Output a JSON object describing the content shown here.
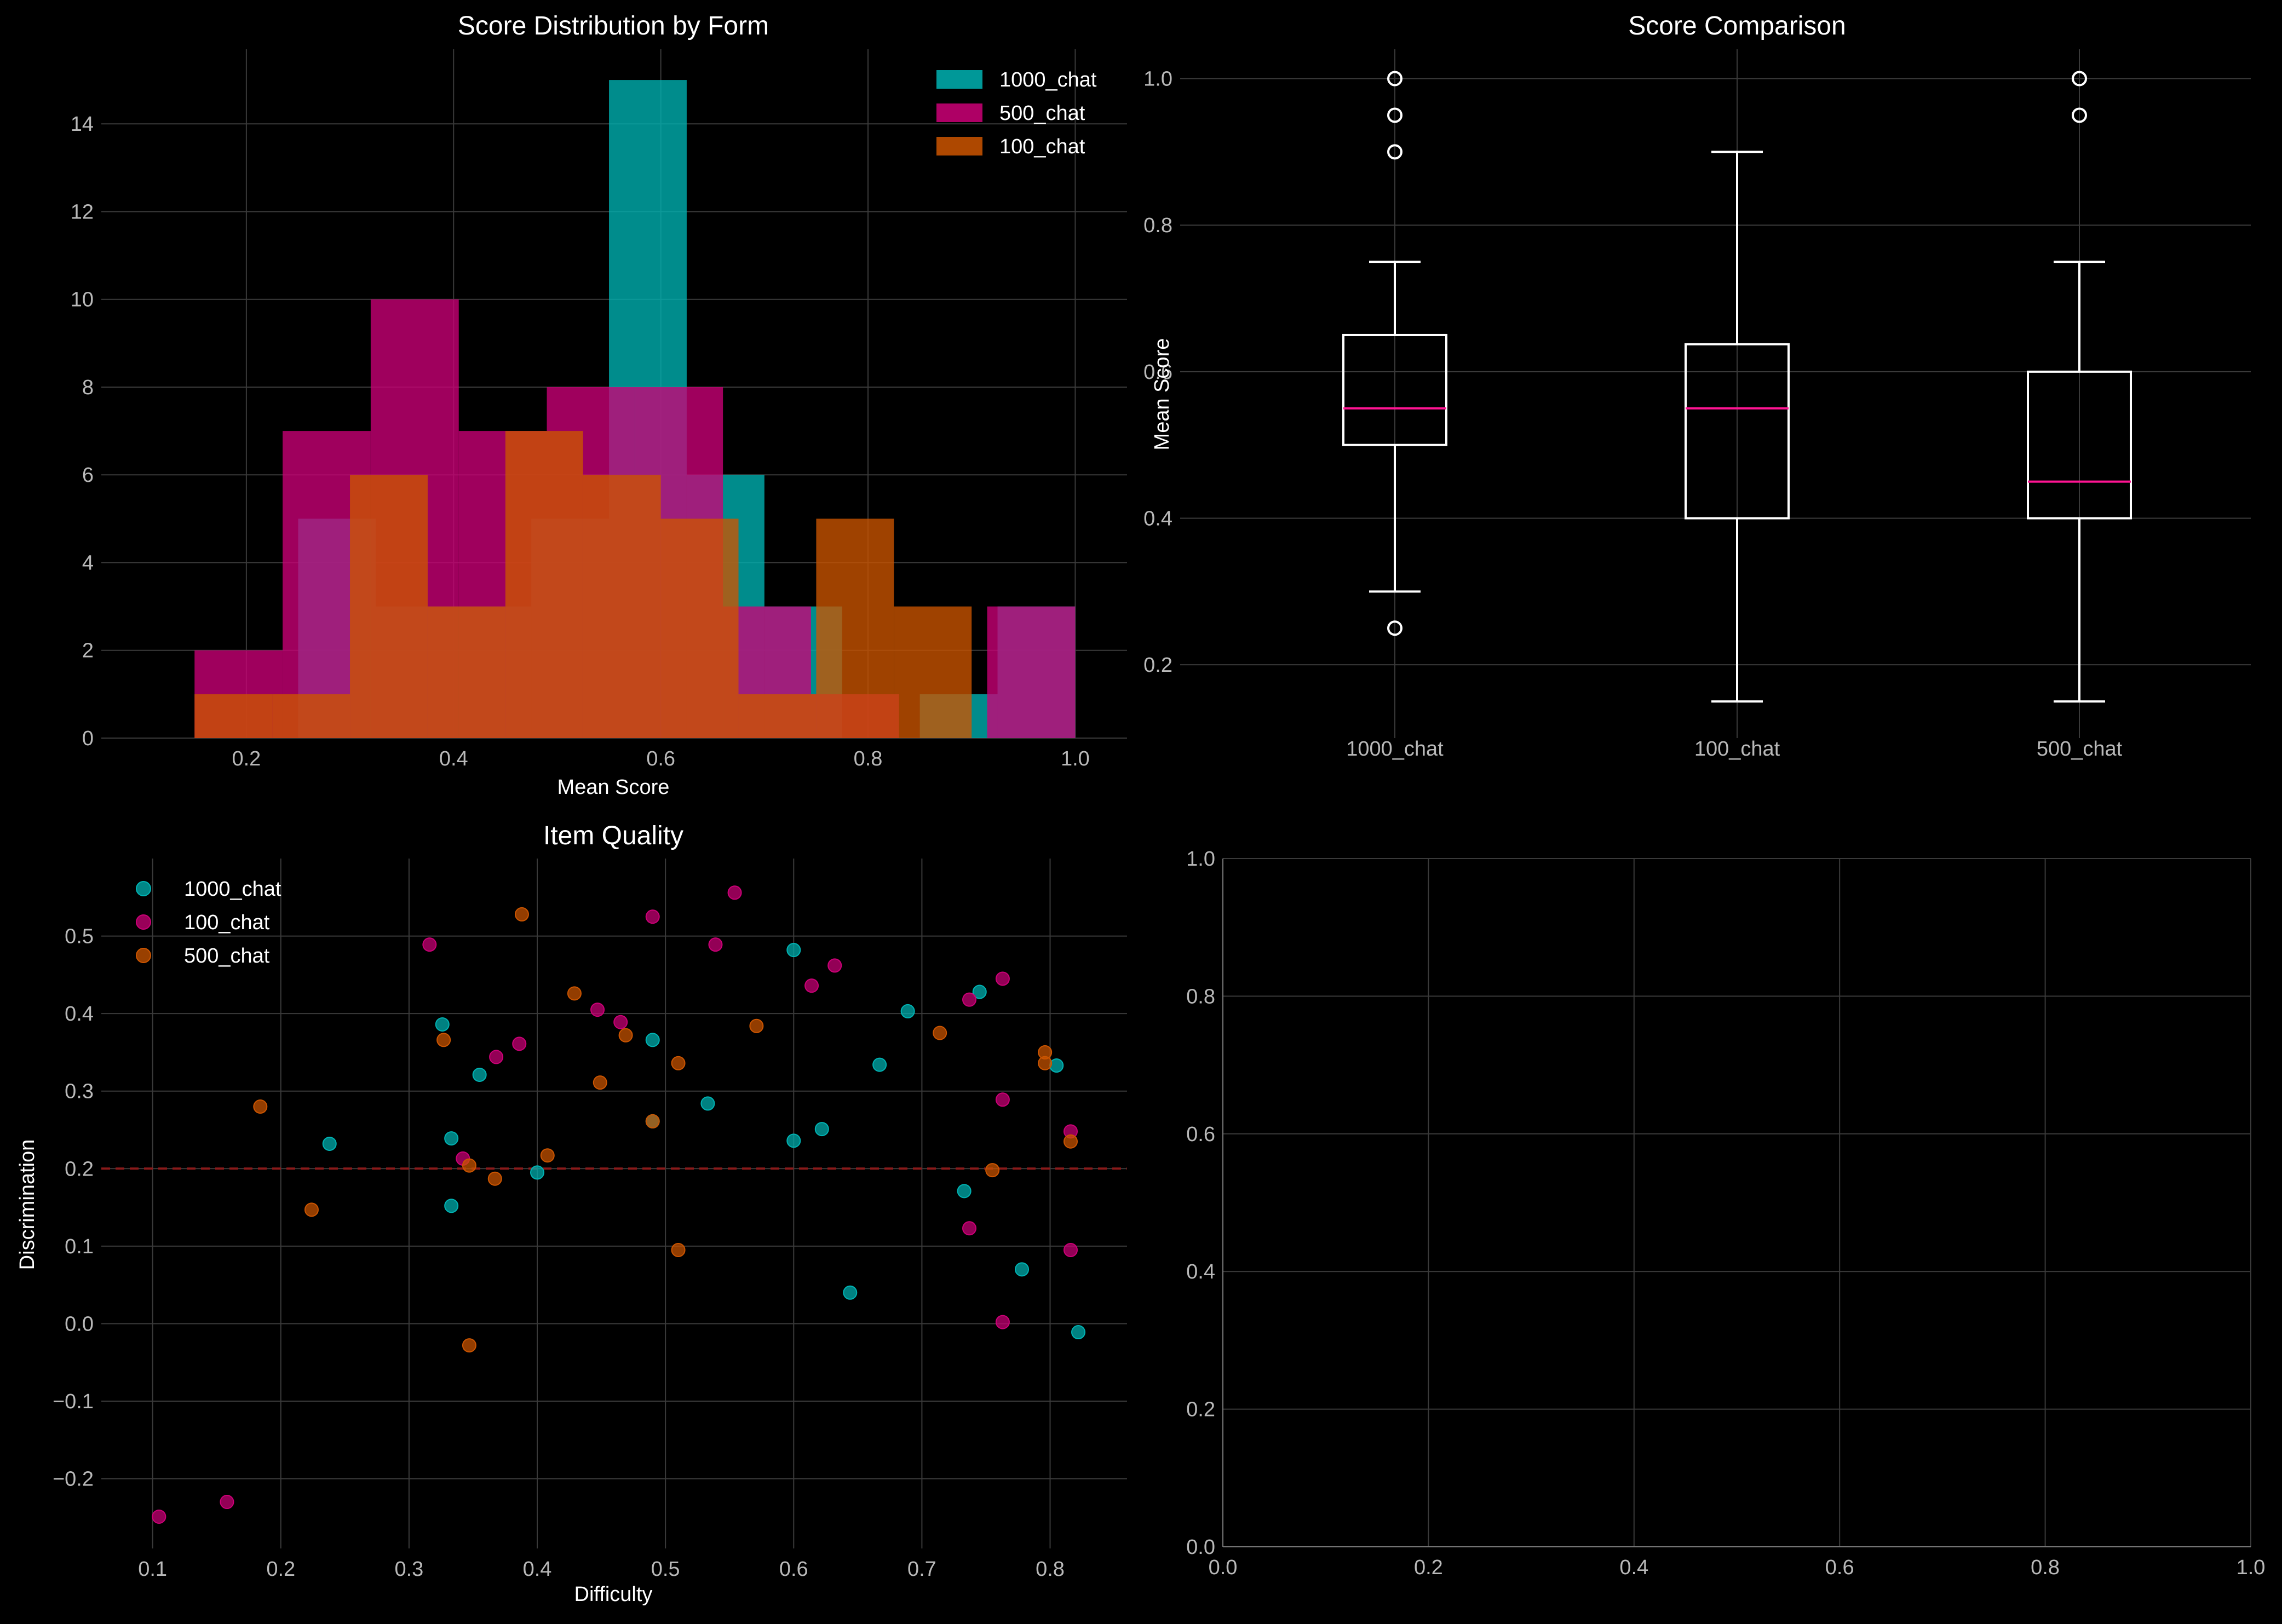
{
  "chart_data": [
    {
      "type": "histogram",
      "title": "Score Distribution by Form",
      "xlabel": "Mean Score",
      "ylabel": "",
      "xlim": [
        0.06,
        1.05
      ],
      "ylim": [
        0,
        15.7
      ],
      "xticks": [
        "0.2",
        "0.4",
        "0.6",
        "0.8",
        "1.0"
      ],
      "yticks": [
        "0",
        "2",
        "4",
        "6",
        "8",
        "10",
        "12",
        "14"
      ],
      "grid": true,
      "legend_position": "top-right",
      "series": [
        {
          "name": "1000_chat",
          "color": "#00b3b3",
          "bins": [
            {
              "x0": 0.25,
              "x1": 0.325,
              "count": 5
            },
            {
              "x0": 0.325,
              "x1": 0.4,
              "count": 3
            },
            {
              "x0": 0.4,
              "x1": 0.475,
              "count": 3
            },
            {
              "x0": 0.475,
              "x1": 0.55,
              "count": 5
            },
            {
              "x0": 0.55,
              "x1": 0.625,
              "count": 15
            },
            {
              "x0": 0.625,
              "x1": 0.7,
              "count": 6
            },
            {
              "x0": 0.7,
              "x1": 0.775,
              "count": 3
            },
            {
              "x0": 0.775,
              "x1": 0.85,
              "count": 0
            },
            {
              "x0": 0.85,
              "x1": 0.925,
              "count": 1
            },
            {
              "x0": 0.925,
              "x1": 1.0,
              "count": 3
            }
          ]
        },
        {
          "name": "500_chat",
          "color": "#cc0077",
          "bins": [
            {
              "x0": 0.15,
              "x1": 0.235,
              "count": 2
            },
            {
              "x0": 0.235,
              "x1": 0.32,
              "count": 7
            },
            {
              "x0": 0.32,
              "x1": 0.405,
              "count": 10
            },
            {
              "x0": 0.405,
              "x1": 0.49,
              "count": 7
            },
            {
              "x0": 0.49,
              "x1": 0.575,
              "count": 8
            },
            {
              "x0": 0.575,
              "x1": 0.66,
              "count": 8
            },
            {
              "x0": 0.66,
              "x1": 0.745,
              "count": 3
            },
            {
              "x0": 0.745,
              "x1": 0.83,
              "count": 1
            },
            {
              "x0": 0.83,
              "x1": 0.915,
              "count": 0
            },
            {
              "x0": 0.915,
              "x1": 1.0,
              "count": 3
            }
          ]
        },
        {
          "name": "100_chat",
          "color": "#cc5500",
          "bins": [
            {
              "x0": 0.15,
              "x1": 0.225,
              "count": 1
            },
            {
              "x0": 0.225,
              "x1": 0.3,
              "count": 1
            },
            {
              "x0": 0.3,
              "x1": 0.375,
              "count": 6
            },
            {
              "x0": 0.375,
              "x1": 0.45,
              "count": 3
            },
            {
              "x0": 0.45,
              "x1": 0.525,
              "count": 7
            },
            {
              "x0": 0.525,
              "x1": 0.6,
              "count": 6
            },
            {
              "x0": 0.6,
              "x1": 0.675,
              "count": 5
            },
            {
              "x0": 0.675,
              "x1": 0.75,
              "count": 1
            },
            {
              "x0": 0.75,
              "x1": 0.825,
              "count": 5
            },
            {
              "x0": 0.825,
              "x1": 0.9,
              "count": 3
            }
          ]
        }
      ]
    },
    {
      "type": "box",
      "title": "Score Comparison",
      "ylabel": "Mean Score",
      "xlabel": "",
      "ylim": [
        0.1,
        1.04
      ],
      "yticks": [
        "0.2",
        "0.4",
        "0.6",
        "0.8",
        "1.0"
      ],
      "grid": true,
      "categories": [
        "1000_chat",
        "100_chat",
        "500_chat"
      ],
      "boxes": [
        {
          "name": "1000_chat",
          "whisker_low": 0.3,
          "q1": 0.5,
          "median": 0.55,
          "q3": 0.65,
          "whisker_high": 0.75,
          "outliers": [
            1.0,
            0.95,
            0.9,
            0.25
          ]
        },
        {
          "name": "100_chat",
          "whisker_low": 0.15,
          "q1": 0.4,
          "median": 0.55,
          "q3": 0.6375,
          "whisker_high": 0.9,
          "outliers": []
        },
        {
          "name": "500_chat",
          "whisker_low": 0.15,
          "q1": 0.4,
          "median": 0.45,
          "q3": 0.6,
          "whisker_high": 0.75,
          "outliers": [
            1.0,
            0.95
          ]
        }
      ],
      "median_color": "#ff1493"
    },
    {
      "type": "scatter",
      "title": "Item Quality",
      "xlabel": "Difficulty",
      "ylabel": "Discrimination",
      "xlim": [
        0.06,
        0.86
      ],
      "ylim": [
        -0.29,
        0.6
      ],
      "xticks": [
        "0.1",
        "0.2",
        "0.3",
        "0.4",
        "0.5",
        "0.6",
        "0.7",
        "0.8"
      ],
      "yticks": [
        "−0.2",
        "−0.1",
        "0.0",
        "0.1",
        "0.2",
        "0.3",
        "0.4",
        "0.5"
      ],
      "reference_line": {
        "y": 0.2,
        "style": "dashed",
        "color": "#8b1a1a"
      },
      "grid": true,
      "legend_position": "top-left",
      "series": [
        {
          "name": "1000_chat",
          "color": "#00b3b3",
          "points": [
            [
              0.238,
              0.232
            ],
            [
              0.326,
              0.386
            ],
            [
              0.333,
              0.239
            ],
            [
              0.333,
              0.152
            ],
            [
              0.355,
              0.321
            ],
            [
              0.4,
              0.195
            ],
            [
              0.49,
              0.366
            ],
            [
              0.49,
              0.261
            ],
            [
              0.533,
              0.284
            ],
            [
              0.6,
              0.482
            ],
            [
              0.6,
              0.236
            ],
            [
              0.622,
              0.251
            ],
            [
              0.644,
              0.04
            ],
            [
              0.667,
              0.334
            ],
            [
              0.689,
              0.403
            ],
            [
              0.733,
              0.171
            ],
            [
              0.745,
              0.428
            ],
            [
              0.778,
              0.07
            ],
            [
              0.805,
              0.333
            ],
            [
              0.822,
              -0.011
            ]
          ]
        },
        {
          "name": "100_chat",
          "color": "#cc0077",
          "points": [
            [
              0.105,
              -0.249
            ],
            [
              0.158,
              -0.23
            ],
            [
              0.316,
              0.489
            ],
            [
              0.342,
              0.213
            ],
            [
              0.368,
              0.344
            ],
            [
              0.386,
              0.361
            ],
            [
              0.447,
              0.405
            ],
            [
              0.465,
              0.389
            ],
            [
              0.49,
              0.525
            ],
            [
              0.539,
              0.489
            ],
            [
              0.554,
              0.556
            ],
            [
              0.614,
              0.436
            ],
            [
              0.632,
              0.462
            ],
            [
              0.737,
              0.418
            ],
            [
              0.737,
              0.123
            ],
            [
              0.763,
              0.445
            ],
            [
              0.763,
              0.289
            ],
            [
              0.763,
              0.002
            ],
            [
              0.816,
              0.248
            ],
            [
              0.816,
              0.095
            ]
          ]
        },
        {
          "name": "500_chat",
          "color": "#cc5500",
          "points": [
            [
              0.184,
              0.28
            ],
            [
              0.224,
              0.147
            ],
            [
              0.327,
              0.366
            ],
            [
              0.347,
              0.204
            ],
            [
              0.347,
              -0.028
            ],
            [
              0.367,
              0.187
            ],
            [
              0.388,
              0.528
            ],
            [
              0.408,
              0.217
            ],
            [
              0.429,
              0.426
            ],
            [
              0.449,
              0.311
            ],
            [
              0.469,
              0.372
            ],
            [
              0.49,
              0.261
            ],
            [
              0.51,
              0.336
            ],
            [
              0.51,
              0.095
            ],
            [
              0.571,
              0.384
            ],
            [
              0.714,
              0.375
            ],
            [
              0.755,
              0.198
            ],
            [
              0.796,
              0.35
            ],
            [
              0.796,
              0.336
            ],
            [
              0.816,
              0.235
            ]
          ]
        }
      ]
    },
    {
      "type": "scatter",
      "title": "",
      "xlabel": "",
      "ylabel": "",
      "xlim": [
        0.0,
        1.0
      ],
      "ylim": [
        0.0,
        1.0
      ],
      "xticks": [
        "0.0",
        "0.2",
        "0.4",
        "0.6",
        "0.8",
        "1.0"
      ],
      "yticks": [
        "0.0",
        "0.2",
        "0.4",
        "0.6",
        "0.8",
        "1.0"
      ],
      "grid": true,
      "series": []
    }
  ]
}
